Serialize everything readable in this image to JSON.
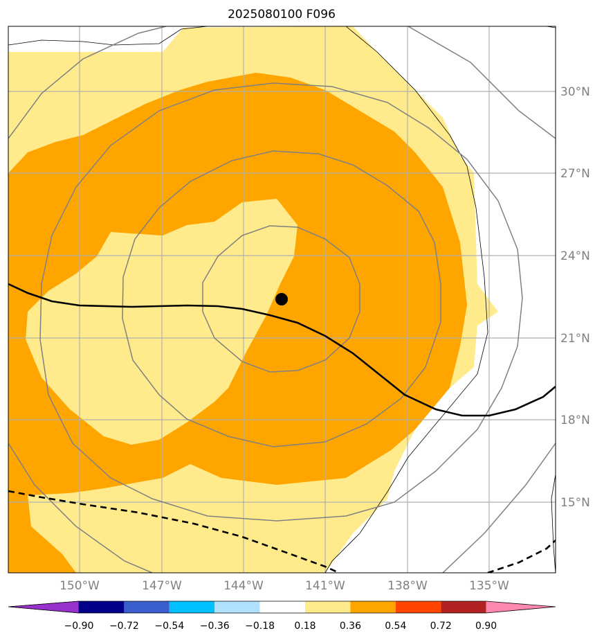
{
  "title": "2025080100 F096",
  "map": {
    "lon_labels": [
      "150°W",
      "147°W",
      "144°W",
      "141°W",
      "138°W",
      "135°W"
    ],
    "lat_labels": [
      "30°N",
      "27°N",
      "24°N",
      "21°N",
      "18°N",
      "15°N"
    ],
    "storm_center": {
      "lon": -142.2,
      "lat": 22.4
    },
    "fill_colors": {
      "light": "#ffeb8c",
      "mid": "#ffa500"
    },
    "grid_color": "#b0b0b0",
    "contour_color": "#808080",
    "track_color": "#000000"
  },
  "colorbar": {
    "ticks": [
      "−0.90",
      "−0.72",
      "−0.54",
      "−0.36",
      "−0.18",
      "0.18",
      "0.36",
      "0.54",
      "0.72",
      "0.90"
    ],
    "colors": [
      "#9932cc",
      "#00008b",
      "#3a5fcd",
      "#00bfff",
      "#b0e2ff",
      "#ffffff",
      "#ffeb8c",
      "#ffa500",
      "#ff4500",
      "#b22222",
      "#ff88b0"
    ]
  }
}
